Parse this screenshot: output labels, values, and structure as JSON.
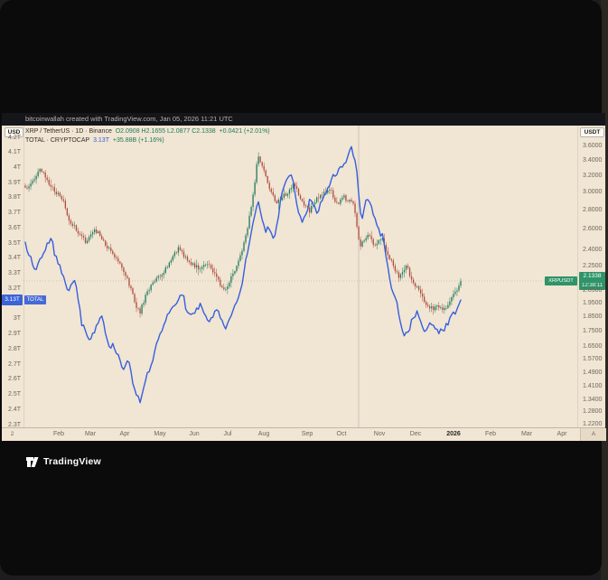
{
  "attribution": {
    "text": "bitcoinwallah created with TradingView.com, Jan 05, 2026 11:21 UTC"
  },
  "legend": {
    "row1": {
      "symbol_line": "XRP / TetherUS · 1D · Binance",
      "o": "O2.0908",
      "h": "H2.1655",
      "l": "L2.0877",
      "c": "C2.1338",
      "change": "+0.0421 (+2.01%)"
    },
    "row2": {
      "name_line": "TOTAL · CRYPTOCAP",
      "value": "3.13T",
      "change": "+35.88B (+1.16%)"
    }
  },
  "left_axis": {
    "currency": "USD",
    "badge": {
      "value": "3.13T",
      "tag": "TOTAL"
    }
  },
  "right_axis": {
    "currency": "USDT",
    "badge": {
      "price": "2.1338",
      "countdown": "12:38:11",
      "tag": "XRPUSDT"
    }
  },
  "time_axis": {
    "left_corner": "2",
    "labels": [
      "Feb",
      "Mar",
      "Apr",
      "May",
      "Jun",
      "Jul",
      "Aug",
      "Sep",
      "Oct",
      "Nov",
      "Dec",
      "2026",
      "Feb",
      "Mar",
      "Apr"
    ],
    "right_corner": "A"
  },
  "footer": {
    "brand": "TradingView"
  },
  "colors": {
    "chart_bg": "#f1e5d3",
    "up_green": "#1f7a5c",
    "down_red": "#ad4a3e",
    "total_blue": "#3560dd",
    "badge_green": "#2f9468",
    "badge_blue": "#3c64d8",
    "axis_text": "#6e675c"
  },
  "chart_data": {
    "type": "candlestick",
    "title": "XRP / TetherUS 1D (Binance) with TOTAL crypto market cap overlay",
    "x_range": [
      "Jan 2025",
      "Apr 2026"
    ],
    "data_end": "Jan 05, 2026",
    "grid": "off",
    "left_axis": {
      "unit": "USD trillions",
      "scale": "linear",
      "ticks": [
        "4.2T",
        "4.1T",
        "4T",
        "3.9T",
        "3.8T",
        "3.7T",
        "3.6T",
        "3.5T",
        "3.4T",
        "3.3T",
        "3.2T",
        "3T",
        "2.9T",
        "2.8T",
        "2.7T",
        "2.6T",
        "2.5T",
        "2.4T",
        "2.3T"
      ]
    },
    "right_axis": {
      "unit": "USDT",
      "scale": "log",
      "ticks": [
        "3.6000",
        "3.4000",
        "3.2000",
        "3.0000",
        "2.8000",
        "2.6000",
        "2.4000",
        "2.2500",
        "2.0500",
        "1.9500",
        "1.8500",
        "1.7500",
        "1.6500",
        "1.5700",
        "1.4900",
        "1.4100",
        "1.3400",
        "1.2800",
        "1.2200"
      ]
    },
    "series": [
      {
        "name": "XRP / TetherUS",
        "type": "candlestick",
        "axis": "right",
        "last_open": 2.0908,
        "last_high": 2.1655,
        "last_low": 2.0877,
        "last_close": 2.1338,
        "points": [
          [
            0,
            3.05
          ],
          [
            0.02,
            3.18
          ],
          [
            0.035,
            3.3
          ],
          [
            0.05,
            3.15
          ],
          [
            0.07,
            3.0
          ],
          [
            0.085,
            2.95
          ],
          [
            0.1,
            2.72
          ],
          [
            0.12,
            2.58
          ],
          [
            0.14,
            2.48
          ],
          [
            0.158,
            2.62
          ],
          [
            0.175,
            2.52
          ],
          [
            0.19,
            2.42
          ],
          [
            0.21,
            2.32
          ],
          [
            0.236,
            2.14
          ],
          [
            0.25,
            1.98
          ],
          [
            0.262,
            1.88
          ],
          [
            0.275,
            2.0
          ],
          [
            0.29,
            2.1
          ],
          [
            0.316,
            2.2
          ],
          [
            0.335,
            2.32
          ],
          [
            0.35,
            2.42
          ],
          [
            0.37,
            2.32
          ],
          [
            0.398,
            2.24
          ],
          [
            0.42,
            2.28
          ],
          [
            0.445,
            2.12
          ],
          [
            0.46,
            2.05
          ],
          [
            0.473,
            2.16
          ],
          [
            0.49,
            2.3
          ],
          [
            0.51,
            2.6
          ],
          [
            0.525,
            3.05
          ],
          [
            0.535,
            3.5
          ],
          [
            0.545,
            3.32
          ],
          [
            0.556,
            3.12
          ],
          [
            0.575,
            2.88
          ],
          [
            0.6,
            3.0
          ],
          [
            0.615,
            3.12
          ],
          [
            0.635,
            2.9
          ],
          [
            0.653,
            2.8
          ],
          [
            0.675,
            2.98
          ],
          [
            0.7,
            3.05
          ],
          [
            0.715,
            2.88
          ],
          [
            0.732,
            2.95
          ],
          [
            0.755,
            2.88
          ],
          [
            0.768,
            2.42
          ],
          [
            0.785,
            2.56
          ],
          [
            0.8,
            2.46
          ],
          [
            0.818,
            2.52
          ],
          [
            0.84,
            2.3
          ],
          [
            0.86,
            2.16
          ],
          [
            0.875,
            2.26
          ],
          [
            0.89,
            2.12
          ],
          [
            0.902,
            2.06
          ],
          [
            0.915,
            1.97
          ],
          [
            0.935,
            1.91
          ],
          [
            0.95,
            1.94
          ],
          [
            0.965,
            1.9
          ],
          [
            0.978,
            1.99
          ],
          [
            0.99,
            2.04
          ],
          [
            1,
            2.1338
          ]
        ]
      },
      {
        "name": "TOTAL - CRYPTOCAP",
        "type": "line",
        "axis": "left",
        "unit": "trillion USD",
        "last_value": 3.13,
        "points": [
          [
            0,
            3.5
          ],
          [
            0.02,
            3.36
          ],
          [
            0.04,
            3.44
          ],
          [
            0.06,
            3.5
          ],
          [
            0.085,
            3.34
          ],
          [
            0.1,
            3.2
          ],
          [
            0.115,
            3.28
          ],
          [
            0.13,
            2.97
          ],
          [
            0.145,
            2.84
          ],
          [
            0.158,
            2.92
          ],
          [
            0.175,
            3.02
          ],
          [
            0.19,
            2.86
          ],
          [
            0.21,
            2.76
          ],
          [
            0.225,
            2.66
          ],
          [
            0.236,
            2.74
          ],
          [
            0.25,
            2.52
          ],
          [
            0.263,
            2.43
          ],
          [
            0.28,
            2.64
          ],
          [
            0.3,
            2.84
          ],
          [
            0.316,
            2.94
          ],
          [
            0.34,
            3.08
          ],
          [
            0.36,
            3.14
          ],
          [
            0.38,
            3.06
          ],
          [
            0.398,
            3.1
          ],
          [
            0.42,
            3.0
          ],
          [
            0.44,
            3.06
          ],
          [
            0.46,
            2.9
          ],
          [
            0.473,
            3.0
          ],
          [
            0.5,
            3.26
          ],
          [
            0.52,
            3.56
          ],
          [
            0.535,
            3.76
          ],
          [
            0.548,
            3.58
          ],
          [
            0.556,
            3.66
          ],
          [
            0.572,
            3.56
          ],
          [
            0.59,
            3.84
          ],
          [
            0.61,
            3.95
          ],
          [
            0.63,
            3.66
          ],
          [
            0.653,
            3.78
          ],
          [
            0.67,
            3.7
          ],
          [
            0.69,
            3.86
          ],
          [
            0.71,
            3.94
          ],
          [
            0.732,
            4.0
          ],
          [
            0.748,
            4.15
          ],
          [
            0.76,
            4.05
          ],
          [
            0.772,
            3.62
          ],
          [
            0.785,
            3.8
          ],
          [
            0.8,
            3.7
          ],
          [
            0.818,
            3.56
          ],
          [
            0.835,
            3.3
          ],
          [
            0.85,
            3.16
          ],
          [
            0.865,
            2.9
          ],
          [
            0.88,
            2.96
          ],
          [
            0.902,
            3.05
          ],
          [
            0.915,
            2.92
          ],
          [
            0.93,
            3.0
          ],
          [
            0.945,
            2.95
          ],
          [
            0.96,
            2.9
          ],
          [
            0.975,
            3.0
          ],
          [
            0.99,
            3.06
          ],
          [
            1,
            3.13
          ]
        ]
      }
    ]
  }
}
